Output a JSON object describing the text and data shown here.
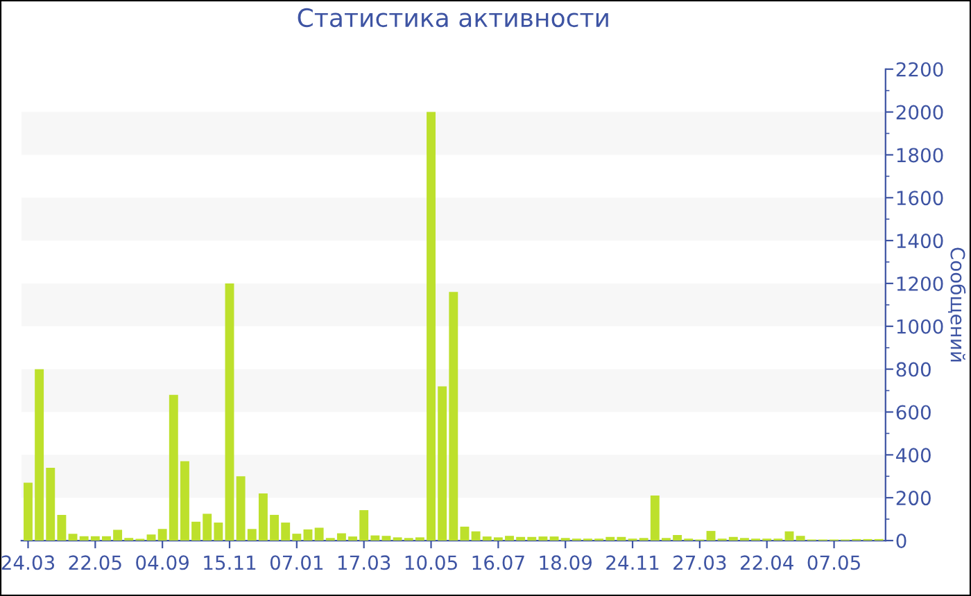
{
  "chart_data": {
    "type": "bar",
    "title": "Статистика активности",
    "ylabel": "Сообщений",
    "categories": [
      "24.03",
      null,
      null,
      null,
      null,
      null,
      "22.05",
      null,
      null,
      null,
      null,
      null,
      "04.09",
      null,
      null,
      null,
      null,
      null,
      "15.11",
      null,
      null,
      null,
      null,
      null,
      "07.01",
      null,
      null,
      null,
      null,
      null,
      "17.03",
      null,
      null,
      null,
      null,
      null,
      "10.05",
      null,
      null,
      null,
      null,
      null,
      "16.07",
      null,
      null,
      null,
      null,
      null,
      "18.09",
      null,
      null,
      null,
      null,
      null,
      "24.11",
      null,
      null,
      null,
      null,
      null,
      "27.03",
      null,
      null,
      null,
      null,
      null,
      "22.04",
      null,
      null,
      null,
      null,
      null,
      "07.05",
      null,
      null,
      null,
      null
    ],
    "values": [
      270,
      800,
      340,
      120,
      32,
      20,
      20,
      20,
      50,
      12,
      8,
      28,
      54,
      680,
      370,
      88,
      125,
      84,
      1200,
      300,
      54,
      220,
      120,
      84,
      32,
      52,
      60,
      12,
      34,
      19,
      142,
      24,
      22,
      15,
      12,
      15,
      2000,
      720,
      1160,
      65,
      43,
      19,
      15,
      22,
      17,
      17,
      19,
      19,
      12,
      9,
      9,
      9,
      17,
      17,
      9,
      12,
      210,
      12,
      26,
      9,
      5,
      45,
      9,
      17,
      12,
      9,
      9,
      9,
      43,
      22,
      5,
      5,
      5,
      5,
      7,
      7,
      7
    ],
    "color": "#bde02c",
    "ylim": [
      0,
      2200
    ],
    "yticks": [
      0,
      200,
      400,
      600,
      800,
      1000,
      1200,
      1400,
      1600,
      1800,
      2000,
      2200
    ],
    "bands": [
      {
        "axis": "y",
        "from": 200,
        "to": 400,
        "color": "#f7f7f7"
      },
      {
        "axis": "y",
        "from": 600,
        "to": 800,
        "color": "#f7f7f7"
      },
      {
        "axis": "y",
        "from": 1000,
        "to": 1200,
        "color": "#f7f7f7"
      },
      {
        "axis": "y",
        "from": 1400,
        "to": 1600,
        "color": "#f7f7f7"
      },
      {
        "axis": "y",
        "from": 1800,
        "to": 2000,
        "color": "#f7f7f7"
      }
    ]
  }
}
